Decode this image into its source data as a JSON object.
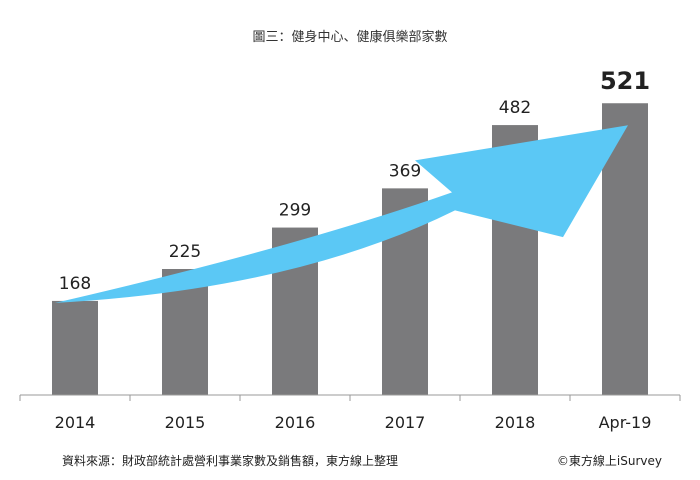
{
  "title": "圖三：健身中心、健康俱樂部家數",
  "source": "資料來源：財政部統計處營利事業家數及銷售額，東方線上整理",
  "brand": "©東方線上iSurvey",
  "colors": {
    "bar": "#7a7a7c",
    "arrow": "#5bc8f5",
    "axis": "#999999"
  },
  "chart_data": {
    "type": "bar",
    "categories": [
      "2014",
      "2015",
      "2016",
      "2017",
      "2018",
      "Apr-19"
    ],
    "values": [
      168,
      225,
      299,
      369,
      482,
      521
    ],
    "labels": [
      "168",
      "225",
      "299",
      "369",
      "482",
      "521"
    ],
    "highlight_label": "521",
    "title": "圖三：健身中心、健康俱樂部家數",
    "xlabel": "",
    "ylabel": "",
    "ylim": [
      0,
      600
    ],
    "grid": false,
    "annotation": "upward-arrow"
  }
}
